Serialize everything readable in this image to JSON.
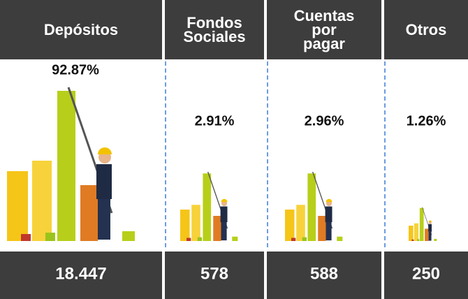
{
  "columns": [
    {
      "header": [
        "Depósitos"
      ],
      "percent": "92.87%",
      "value": "18.447"
    },
    {
      "header": [
        "Fondos",
        "Sociales"
      ],
      "percent": "2.91%",
      "value": "578"
    },
    {
      "header": [
        "Cuentas",
        "por",
        "pagar"
      ],
      "percent": "2.96%",
      "value": "588"
    },
    {
      "header": [
        "Otros"
      ],
      "percent": "1.26%",
      "value": "250"
    }
  ]
}
